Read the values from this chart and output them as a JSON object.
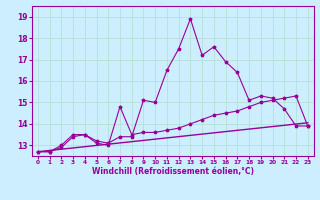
{
  "title": "",
  "xlabel": "Windchill (Refroidissement éolien,°C)",
  "background_color": "#cceeff",
  "grid_color": "#b0ddd0",
  "line_color": "#990099",
  "xlim": [
    -0.5,
    23.5
  ],
  "ylim": [
    12.5,
    19.5
  ],
  "yticks": [
    13,
    14,
    15,
    16,
    17,
    18,
    19
  ],
  "xticks": [
    0,
    1,
    2,
    3,
    4,
    5,
    6,
    7,
    8,
    9,
    10,
    11,
    12,
    13,
    14,
    15,
    16,
    17,
    18,
    19,
    20,
    21,
    22,
    23
  ],
  "series1_x": [
    0,
    1,
    2,
    3,
    4,
    5,
    6,
    7,
    8,
    9,
    10,
    11,
    12,
    13,
    14,
    15,
    16,
    17,
    18,
    19,
    20,
    21,
    22,
    23
  ],
  "series1_y": [
    12.7,
    12.7,
    12.9,
    13.4,
    13.5,
    13.2,
    13.1,
    13.4,
    13.4,
    15.1,
    15.0,
    16.5,
    17.5,
    18.9,
    17.2,
    17.6,
    16.9,
    16.4,
    15.1,
    15.3,
    15.2,
    14.7,
    13.9,
    13.9
  ],
  "series2_x": [
    0,
    1,
    2,
    3,
    4,
    5,
    6,
    7,
    8,
    9,
    10,
    11,
    12,
    13,
    14,
    15,
    16,
    17,
    18,
    19,
    20,
    21,
    22,
    23
  ],
  "series2_y": [
    12.7,
    12.7,
    13.0,
    13.5,
    13.5,
    13.1,
    13.0,
    14.8,
    13.5,
    13.6,
    13.6,
    13.7,
    13.8,
    14.0,
    14.2,
    14.4,
    14.5,
    14.6,
    14.8,
    15.0,
    15.1,
    15.2,
    15.3,
    13.9
  ],
  "series3_x": [
    0,
    23
  ],
  "series3_y": [
    12.7,
    14.05
  ]
}
